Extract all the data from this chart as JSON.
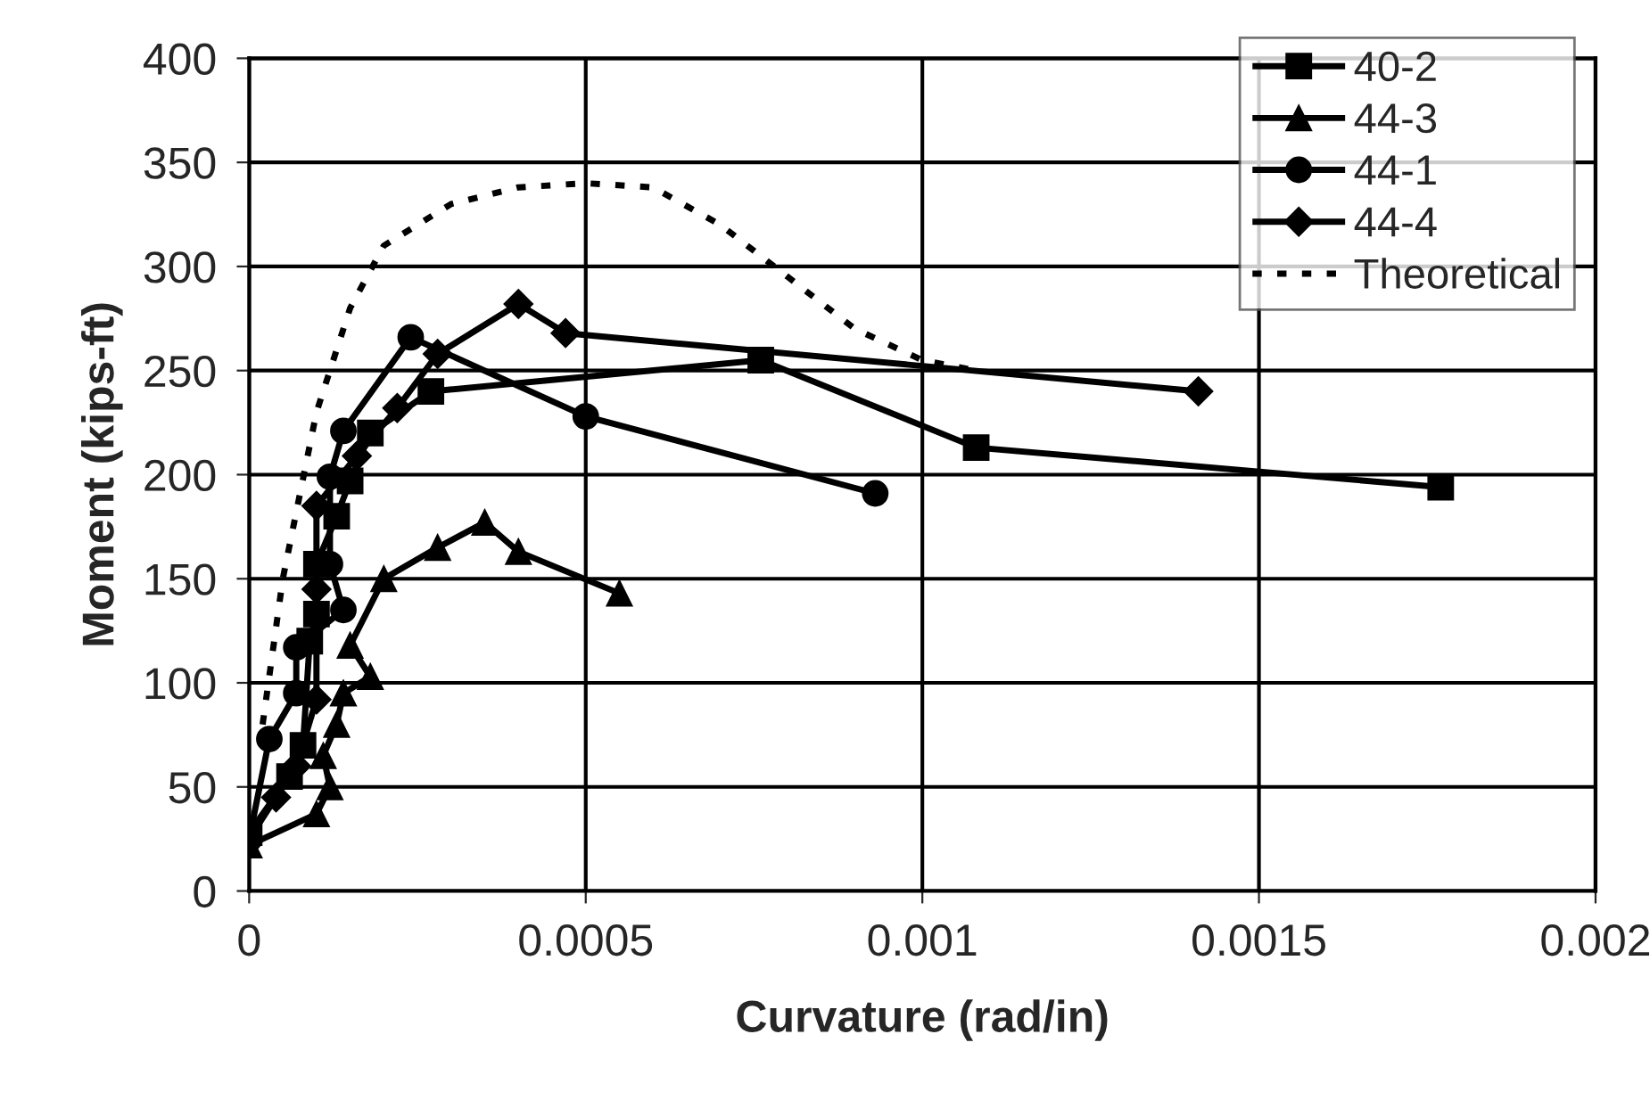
{
  "chart_data": {
    "type": "line",
    "xlabel": "Curvature (rad/in)",
    "ylabel": "Moment (kips-ft)",
    "xlim": [
      0,
      0.002
    ],
    "xticks": [
      {
        "value": 0,
        "label": "0"
      },
      0.0005,
      0.001,
      0.0015,
      0.002
    ],
    "ylim": [
      0,
      400
    ],
    "yticks": [
      0,
      50,
      100,
      150,
      200,
      250,
      300,
      350,
      400
    ],
    "grid": true,
    "legend": "top right",
    "series": [
      {
        "name": "40-2",
        "color": "#000000",
        "marker": "square",
        "line_style": "solid",
        "x": [
          0,
          6e-05,
          8e-05,
          9e-05,
          0.0001,
          0.0001,
          0.00013,
          0.00015,
          0.00018,
          0.00027,
          0.00076,
          0.00108,
          0.00177
        ],
        "values": [
          28,
          55,
          70,
          120,
          133,
          157,
          180,
          197,
          220,
          240,
          255,
          213,
          194
        ]
      },
      {
        "name": "44-3",
        "color": "#000000",
        "marker": "triangle",
        "line_style": "solid",
        "x": [
          0,
          0.0001,
          0.00012,
          0.00011,
          0.00013,
          0.00014,
          0.00018,
          0.00015,
          0.0002,
          0.00028,
          0.00035,
          0.0004,
          0.00055
        ],
        "values": [
          22,
          37,
          50,
          65,
          80,
          95,
          103,
          118,
          150,
          165,
          177,
          163,
          143
        ]
      },
      {
        "name": "44-1",
        "color": "#000000",
        "marker": "circle",
        "line_style": "solid",
        "x": [
          0,
          3e-05,
          7e-05,
          7e-05,
          0.00014,
          0.00012,
          0.00012,
          0.00014,
          0.00024,
          0.0005,
          0.00093
        ],
        "values": [
          25,
          73,
          95,
          117,
          135,
          157,
          199,
          221,
          266,
          228,
          191
        ]
      },
      {
        "name": "44-4",
        "color": "#000000",
        "marker": "diamond",
        "line_style": "solid",
        "x": [
          0,
          4e-05,
          7e-05,
          0.0001,
          0.0001,
          0.0001,
          0.00016,
          0.00022,
          0.00028,
          0.0004,
          0.00047,
          0.00141
        ],
        "values": [
          25,
          45,
          60,
          92,
          145,
          185,
          209,
          232,
          258,
          282,
          268,
          240
        ]
      },
      {
        "name": "Theoretical",
        "color": "#000000",
        "marker": "none",
        "line_style": "dotted",
        "x": [
          2e-05,
          5e-05,
          0.0001,
          0.00015,
          0.0002,
          0.0003,
          0.0004,
          0.0005,
          0.0006,
          0.0007,
          0.0008,
          0.0009,
          0.001,
          0.00108
        ],
        "values": [
          80,
          150,
          230,
          280,
          310,
          330,
          338,
          340,
          338,
          320,
          295,
          270,
          255,
          250
        ]
      }
    ]
  }
}
